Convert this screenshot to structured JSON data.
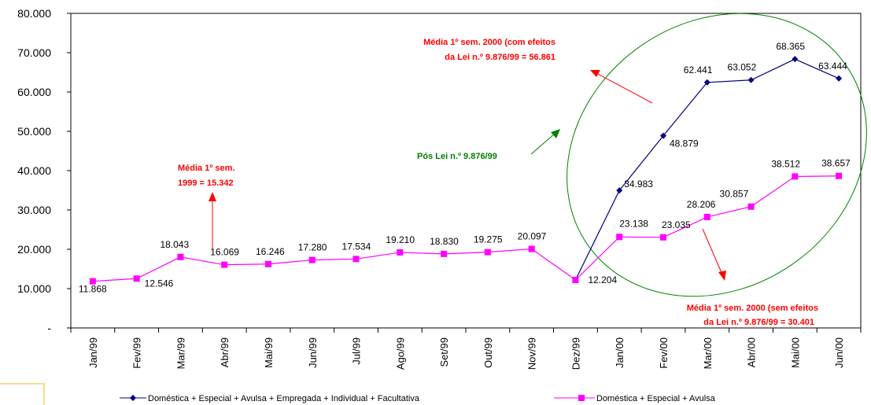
{
  "chart_data": {
    "type": "line",
    "categories": [
      "Jan/99",
      "Fev/99",
      "Mar/99",
      "Abr/99",
      "Mai/99",
      "Jun/99",
      "Jul/99",
      "Ago/99",
      "Set/99",
      "Out/99",
      "Nov/99",
      "Dez/99",
      "Jan/00",
      "Fev/00",
      "Mar/00",
      "Abr/00",
      "Mai/00",
      "Jun/00"
    ],
    "ylim": [
      0,
      80000
    ],
    "yticks": [
      0,
      10000,
      20000,
      30000,
      40000,
      50000,
      60000,
      70000,
      80000
    ],
    "ytick_labels": [
      "-",
      "10.000",
      "20.000",
      "30.000",
      "40.000",
      "50.000",
      "60.000",
      "70.000",
      "80.000"
    ],
    "grid": false,
    "legend_position": "bottom",
    "series": [
      {
        "name": "Doméstica + Especial + Avulsa + Empregada + Individual + Facultativa",
        "color": "#000080",
        "marker": "diamond",
        "x": [
          "Dez/99",
          "Jan/00",
          "Fev/00",
          "Mar/00",
          "Abr/00",
          "Mai/00",
          "Jun/00"
        ],
        "values": [
          12204,
          34983,
          48879,
          62441,
          63052,
          68365,
          63444
        ],
        "labels": [
          "",
          "34.983",
          "48.879",
          "62.441",
          "63.052",
          "68.365",
          "63.444"
        ]
      },
      {
        "name": "Doméstica + Especial + Avulsa",
        "color": "#ff00ff",
        "marker": "square",
        "x": [
          "Jan/99",
          "Fev/99",
          "Mar/99",
          "Abr/99",
          "Mai/99",
          "Jun/99",
          "Jul/99",
          "Ago/99",
          "Set/99",
          "Out/99",
          "Nov/99",
          "Dez/99",
          "Jan/00",
          "Fev/00",
          "Mar/00",
          "Abr/00",
          "Mai/00",
          "Jun/00"
        ],
        "values": [
          11868,
          12546,
          18043,
          16069,
          16246,
          17280,
          17534,
          19210,
          18830,
          19275,
          20097,
          12204,
          23138,
          23035,
          28206,
          30857,
          38512,
          38657
        ],
        "labels": [
          "11.868",
          "12.546",
          "18.043",
          "16.069",
          "16.246",
          "17.280",
          "17.534",
          "19.210",
          "18.830",
          "19.275",
          "20.097",
          "12.204",
          "23.138",
          "23.035",
          "28.206",
          "30.857",
          "38.512",
          "38.657"
        ]
      }
    ],
    "annotations": [
      {
        "id": "media-1999",
        "lines": [
          "Média 1º sem.",
          "1999 = 15.342"
        ],
        "color": "#ff0000"
      },
      {
        "id": "media-2000-com",
        "lines": [
          "Média 1º sem. 2000 (com efeitos",
          "da Lei n.º 9.876/99 = 56.861"
        ],
        "color": "#ff0000"
      },
      {
        "id": "pos-lei",
        "lines": [
          "Pós Lei n.º 9.876/99"
        ],
        "color": "#008000"
      },
      {
        "id": "media-2000-sem",
        "lines": [
          "Média 1º sem. 2000 (sem efeitos",
          "da Lei n.º 9.876/99 = 30.401"
        ],
        "color": "#ff0000"
      }
    ]
  }
}
